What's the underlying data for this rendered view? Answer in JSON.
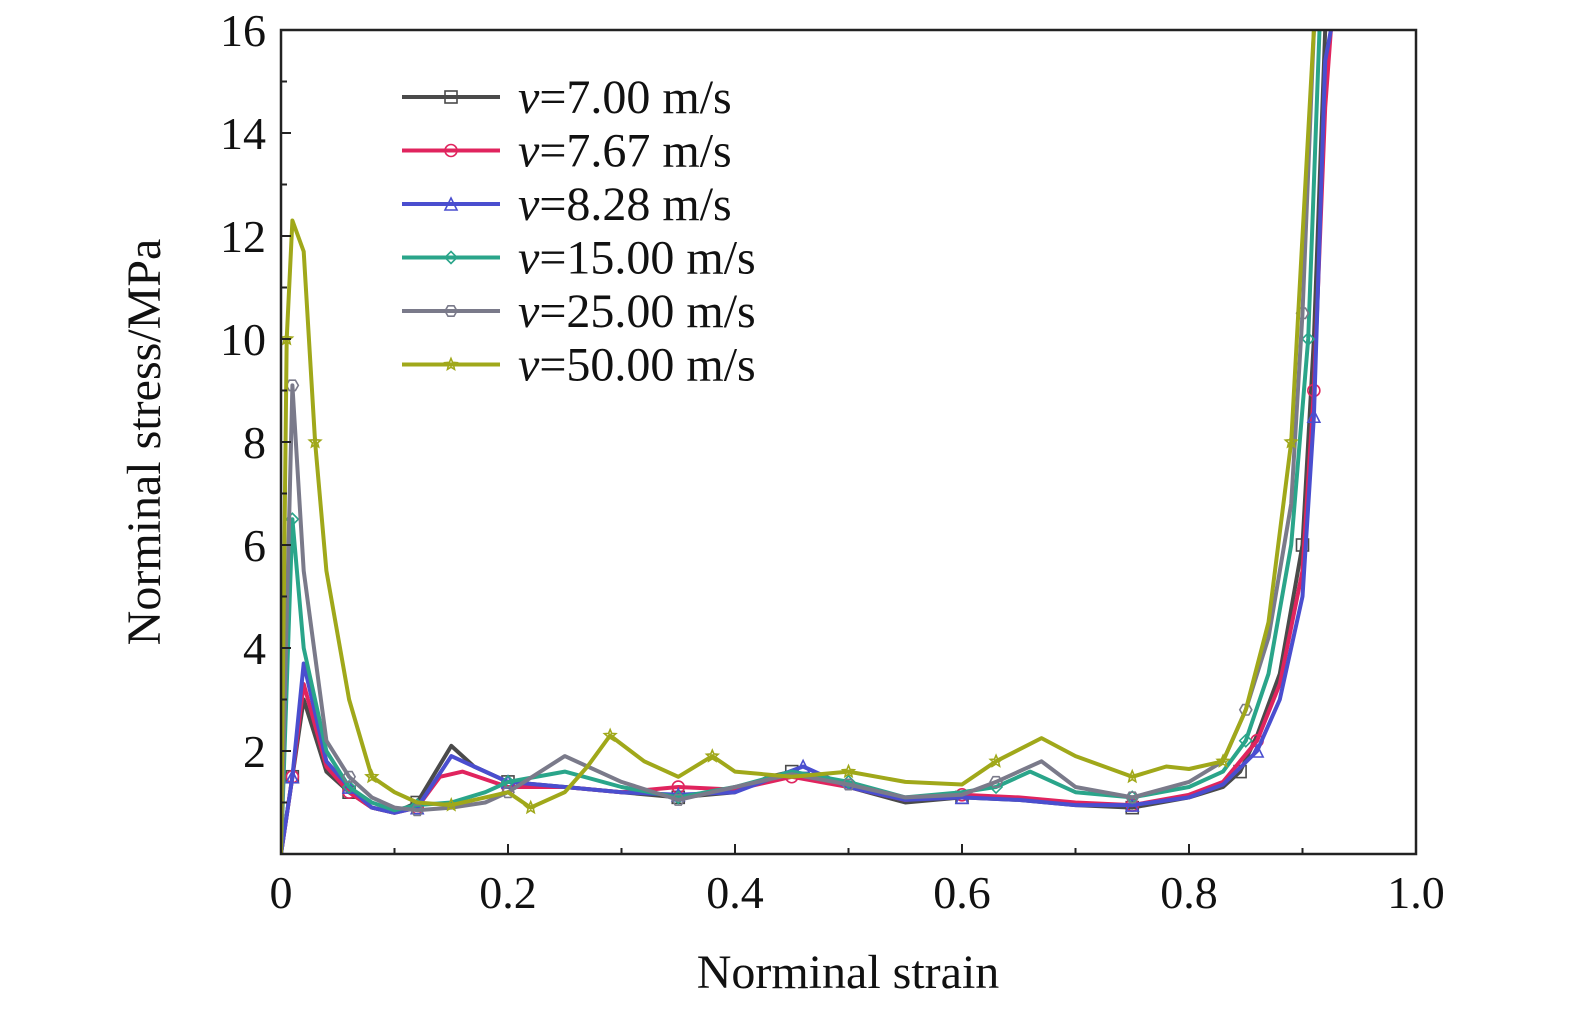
{
  "chart_data": {
    "type": "line",
    "title": "",
    "xlabel": "Norminal strain",
    "ylabel": "Norminal stress/MPa",
    "xlim": [
      0,
      1.0
    ],
    "ylim": [
      0,
      16
    ],
    "x_ticks": [
      0,
      0.2,
      0.4,
      0.6,
      0.8,
      1.0
    ],
    "x_tick_labels": [
      "0",
      "0.2",
      "0.4",
      "0.6",
      "0.8",
      "1.0"
    ],
    "y_ticks": [
      2,
      4,
      6,
      8,
      10,
      12,
      14,
      16
    ],
    "y_tick_labels": [
      "2",
      "4",
      "6",
      "8",
      "10",
      "12",
      "14",
      "16"
    ],
    "grid": false,
    "legend_position": "top-left",
    "series": [
      {
        "name": "v=7.00 m/s",
        "name_italic": "v",
        "name_rest": "=7.00 m/s",
        "color": "#4a4a4a",
        "marker": "square",
        "points": [
          [
            0,
            0
          ],
          [
            0.01,
            1.5
          ],
          [
            0.02,
            3.0
          ],
          [
            0.04,
            1.6
          ],
          [
            0.06,
            1.2
          ],
          [
            0.08,
            0.9
          ],
          [
            0.1,
            0.8
          ],
          [
            0.12,
            1.0
          ],
          [
            0.15,
            2.1
          ],
          [
            0.17,
            1.7
          ],
          [
            0.2,
            1.4
          ],
          [
            0.25,
            1.3
          ],
          [
            0.3,
            1.2
          ],
          [
            0.35,
            1.1
          ],
          [
            0.4,
            1.2
          ],
          [
            0.43,
            1.5
          ],
          [
            0.45,
            1.6
          ],
          [
            0.5,
            1.3
          ],
          [
            0.55,
            1.0
          ],
          [
            0.6,
            1.1
          ],
          [
            0.65,
            1.05
          ],
          [
            0.7,
            0.95
          ],
          [
            0.75,
            0.9
          ],
          [
            0.8,
            1.1
          ],
          [
            0.83,
            1.3
          ],
          [
            0.845,
            1.6
          ],
          [
            0.86,
            2.3
          ],
          [
            0.88,
            3.5
          ],
          [
            0.9,
            6.0
          ],
          [
            0.91,
            10
          ],
          [
            0.92,
            16
          ]
        ]
      },
      {
        "name": "v=7.67 m/s",
        "name_italic": "v",
        "name_rest": "=7.67 m/s",
        "color": "#e0245e",
        "marker": "circle",
        "points": [
          [
            0,
            0
          ],
          [
            0.01,
            1.5
          ],
          [
            0.02,
            3.3
          ],
          [
            0.04,
            1.7
          ],
          [
            0.06,
            1.2
          ],
          [
            0.08,
            0.9
          ],
          [
            0.1,
            0.8
          ],
          [
            0.12,
            0.9
          ],
          [
            0.14,
            1.5
          ],
          [
            0.16,
            1.6
          ],
          [
            0.2,
            1.3
          ],
          [
            0.25,
            1.3
          ],
          [
            0.3,
            1.2
          ],
          [
            0.35,
            1.3
          ],
          [
            0.4,
            1.25
          ],
          [
            0.43,
            1.4
          ],
          [
            0.45,
            1.5
          ],
          [
            0.5,
            1.3
          ],
          [
            0.55,
            1.05
          ],
          [
            0.6,
            1.15
          ],
          [
            0.65,
            1.1
          ],
          [
            0.7,
            1.0
          ],
          [
            0.75,
            0.95
          ],
          [
            0.8,
            1.15
          ],
          [
            0.83,
            1.4
          ],
          [
            0.86,
            2.2
          ],
          [
            0.88,
            3.3
          ],
          [
            0.9,
            5.5
          ],
          [
            0.91,
            9
          ],
          [
            0.92,
            14.5
          ],
          [
            0.925,
            16
          ]
        ]
      },
      {
        "name": "v=8.28 m/s",
        "name_italic": "v",
        "name_rest": "=8.28 m/s",
        "color": "#4a4ecf",
        "marker": "triangle",
        "points": [
          [
            0,
            0
          ],
          [
            0.01,
            1.5
          ],
          [
            0.02,
            3.7
          ],
          [
            0.04,
            1.8
          ],
          [
            0.06,
            1.3
          ],
          [
            0.08,
            0.9
          ],
          [
            0.1,
            0.8
          ],
          [
            0.12,
            0.9
          ],
          [
            0.15,
            1.9
          ],
          [
            0.17,
            1.7
          ],
          [
            0.2,
            1.4
          ],
          [
            0.25,
            1.3
          ],
          [
            0.3,
            1.2
          ],
          [
            0.35,
            1.15
          ],
          [
            0.4,
            1.2
          ],
          [
            0.43,
            1.45
          ],
          [
            0.46,
            1.7
          ],
          [
            0.5,
            1.3
          ],
          [
            0.55,
            1.05
          ],
          [
            0.6,
            1.1
          ],
          [
            0.65,
            1.05
          ],
          [
            0.7,
            0.95
          ],
          [
            0.75,
            0.95
          ],
          [
            0.8,
            1.1
          ],
          [
            0.83,
            1.35
          ],
          [
            0.86,
            2.0
          ],
          [
            0.88,
            3.0
          ],
          [
            0.9,
            5.0
          ],
          [
            0.91,
            8.5
          ],
          [
            0.92,
            15.4
          ],
          [
            0.925,
            16
          ]
        ]
      },
      {
        "name": "v=15.00 m/s",
        "name_italic": "v",
        "name_rest": "=15.00 m/s",
        "color": "#2aa58a",
        "marker": "diamond",
        "points": [
          [
            0,
            0
          ],
          [
            0.01,
            6.5
          ],
          [
            0.02,
            4.0
          ],
          [
            0.04,
            2.0
          ],
          [
            0.06,
            1.3
          ],
          [
            0.08,
            1.0
          ],
          [
            0.1,
            0.85
          ],
          [
            0.12,
            0.95
          ],
          [
            0.15,
            1.0
          ],
          [
            0.18,
            1.2
          ],
          [
            0.2,
            1.4
          ],
          [
            0.25,
            1.6
          ],
          [
            0.3,
            1.3
          ],
          [
            0.35,
            1.1
          ],
          [
            0.4,
            1.3
          ],
          [
            0.45,
            1.6
          ],
          [
            0.5,
            1.4
          ],
          [
            0.55,
            1.1
          ],
          [
            0.6,
            1.2
          ],
          [
            0.63,
            1.3
          ],
          [
            0.66,
            1.6
          ],
          [
            0.7,
            1.2
          ],
          [
            0.75,
            1.1
          ],
          [
            0.8,
            1.3
          ],
          [
            0.83,
            1.6
          ],
          [
            0.85,
            2.2
          ],
          [
            0.87,
            3.5
          ],
          [
            0.89,
            6.0
          ],
          [
            0.905,
            10
          ],
          [
            0.915,
            16
          ]
        ]
      },
      {
        "name": "v=25.00 m/s",
        "name_italic": "v",
        "name_rest": "=25.00 m/s",
        "color": "#7a7a8a",
        "marker": "hexagon",
        "points": [
          [
            0,
            0
          ],
          [
            0.01,
            9.1
          ],
          [
            0.02,
            5.5
          ],
          [
            0.04,
            2.2
          ],
          [
            0.06,
            1.5
          ],
          [
            0.08,
            1.1
          ],
          [
            0.1,
            0.9
          ],
          [
            0.12,
            0.85
          ],
          [
            0.15,
            0.9
          ],
          [
            0.18,
            1.0
          ],
          [
            0.2,
            1.2
          ],
          [
            0.25,
            1.9
          ],
          [
            0.3,
            1.4
          ],
          [
            0.35,
            1.05
          ],
          [
            0.4,
            1.3
          ],
          [
            0.45,
            1.55
          ],
          [
            0.5,
            1.35
          ],
          [
            0.55,
            1.1
          ],
          [
            0.6,
            1.15
          ],
          [
            0.63,
            1.4
          ],
          [
            0.67,
            1.8
          ],
          [
            0.7,
            1.3
          ],
          [
            0.75,
            1.1
          ],
          [
            0.8,
            1.4
          ],
          [
            0.83,
            1.8
          ],
          [
            0.85,
            2.8
          ],
          [
            0.87,
            4.2
          ],
          [
            0.89,
            6.8
          ],
          [
            0.9,
            10.5
          ],
          [
            0.91,
            16
          ]
        ]
      },
      {
        "name": "v=50.00 m/s",
        "name_italic": "v",
        "name_rest": "=50.00 m/s",
        "color": "#a0a81a",
        "marker": "star",
        "points": [
          [
            0,
            0
          ],
          [
            0.005,
            10.0
          ],
          [
            0.01,
            12.3
          ],
          [
            0.02,
            11.7
          ],
          [
            0.03,
            8.0
          ],
          [
            0.04,
            5.5
          ],
          [
            0.06,
            3.0
          ],
          [
            0.08,
            1.5
          ],
          [
            0.1,
            1.2
          ],
          [
            0.12,
            1.0
          ],
          [
            0.15,
            0.95
          ],
          [
            0.18,
            1.1
          ],
          [
            0.2,
            1.2
          ],
          [
            0.22,
            0.9
          ],
          [
            0.25,
            1.2
          ],
          [
            0.27,
            1.7
          ],
          [
            0.29,
            2.3
          ],
          [
            0.32,
            1.8
          ],
          [
            0.35,
            1.5
          ],
          [
            0.38,
            1.9
          ],
          [
            0.4,
            1.6
          ],
          [
            0.45,
            1.5
          ],
          [
            0.5,
            1.6
          ],
          [
            0.55,
            1.4
          ],
          [
            0.6,
            1.35
          ],
          [
            0.63,
            1.8
          ],
          [
            0.67,
            2.25
          ],
          [
            0.7,
            1.9
          ],
          [
            0.75,
            1.5
          ],
          [
            0.78,
            1.7
          ],
          [
            0.8,
            1.65
          ],
          [
            0.83,
            1.8
          ],
          [
            0.85,
            2.8
          ],
          [
            0.87,
            4.5
          ],
          [
            0.89,
            8.0
          ],
          [
            0.9,
            12
          ],
          [
            0.91,
            16
          ]
        ]
      }
    ]
  }
}
